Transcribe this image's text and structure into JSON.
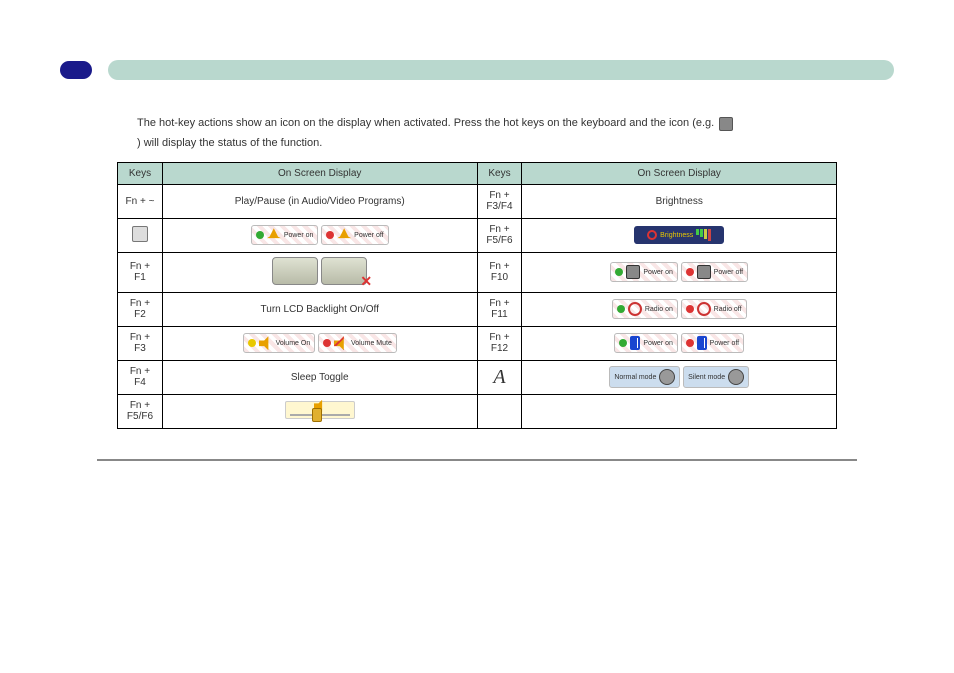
{
  "header": {
    "badge_text": "",
    "bar_label": ""
  },
  "intro_text": "The hot-key actions show an icon on the display when activated. Press the hot keys on the keyboard and the icon (e.g.",
  "intro_text_tail": ") will display the status of the function.",
  "table": {
    "head": {
      "key": "Keys",
      "display": "On Screen Display",
      "key2": "Keys",
      "display2": "On Screen Display"
    },
    "rows": [
      {
        "left_key": "Fn + ~",
        "left_disp_note": "Play/Pause (in Audio/Video Programs)",
        "right_key": "Fn + F3/F4",
        "right_disp_note": "Brightness"
      },
      {
        "left_key_icon": true,
        "left_chips": [
          {
            "dot": "g",
            "icon": "bell",
            "label": "Power on"
          },
          {
            "dot": "r",
            "icon": "bell",
            "label": "Power off"
          }
        ],
        "right_key": "Fn + F5/F6",
        "right_brightness": true
      },
      {
        "left_key": "Fn + F1",
        "left_touchpad": true,
        "right_key": "Fn + F10",
        "right_chips": [
          {
            "dot": "g",
            "icon": "mon",
            "label": "Power on"
          },
          {
            "dot": "r",
            "icon": "mon",
            "label": "Power off"
          }
        ]
      },
      {
        "left_key": "Fn + F2",
        "left_disp_note": "Turn LCD Backlight On/Off",
        "right_key": "Fn + F11",
        "right_chips": [
          {
            "dot": "g",
            "icon": "rad",
            "label": "Radio on"
          },
          {
            "dot": "r",
            "icon": "rad",
            "label": "Radio off"
          }
        ]
      },
      {
        "left_key": "Fn + F3",
        "left_chips": [
          {
            "dot": "y",
            "icon": "speaker",
            "label": "Volume On"
          },
          {
            "dot": "r",
            "icon": "speaker",
            "label": "Volume Mute",
            "no": true
          }
        ],
        "right_key": "Fn + F12",
        "right_chips": [
          {
            "dot": "g",
            "icon": "bt",
            "label": "Power on"
          },
          {
            "dot": "r",
            "icon": "bt",
            "label": "Power off"
          }
        ]
      },
      {
        "left_key": "Fn + F4",
        "left_disp_note": "Sleep Toggle",
        "right_key_logo": true,
        "right_modes": [
          {
            "label": "Normal mode"
          },
          {
            "label": "Silent mode"
          }
        ]
      },
      {
        "left_key": "Fn + F5/F6",
        "left_slider": true,
        "right_key": "",
        "right_disp_note": ""
      }
    ]
  }
}
